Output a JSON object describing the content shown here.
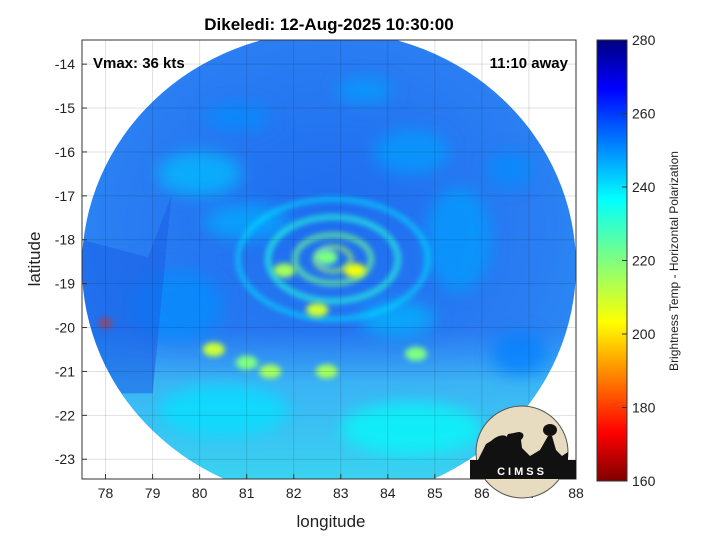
{
  "chart_data": {
    "type": "heatmap",
    "title": "Dikeledi: 12-Aug-2025 10:30:00",
    "xlabel": "longitude",
    "ylabel": "latitude",
    "xlim": [
      77.5,
      88.0
    ],
    "ylim": [
      -23.45,
      -13.45
    ],
    "xticks": [
      78,
      79,
      80,
      81,
      82,
      83,
      84,
      85,
      86,
      87,
      88
    ],
    "yticks": [
      -14,
      -15,
      -16,
      -17,
      -18,
      -19,
      -20,
      -21,
      -22,
      -23
    ],
    "grid": true,
    "annotations": {
      "vmax": "Vmax: 36 kts",
      "time_away": "11:10 away"
    },
    "colorbar": {
      "label": "Brightness Temp - Horizontal Polarization",
      "range": [
        160,
        280
      ],
      "ticks": [
        280,
        260,
        240,
        220,
        200,
        180,
        160
      ],
      "colormap": "jet",
      "placement": "right"
    },
    "swath": {
      "center": [
        82.75,
        -18.6
      ],
      "radius_lon": 5.25,
      "radius_lat": 5.35
    },
    "features": [
      {
        "lon": 82.7,
        "lat": -18.4,
        "tb": 220
      },
      {
        "lon": 83.3,
        "lat": -18.7,
        "tb": 205
      },
      {
        "lon": 81.8,
        "lat": -18.7,
        "tb": 215
      },
      {
        "lon": 82.5,
        "lat": -19.6,
        "tb": 210
      },
      {
        "lon": 78.0,
        "lat": -19.9,
        "tb": 180
      },
      {
        "lon": 80.3,
        "lat": -20.5,
        "tb": 210
      },
      {
        "lon": 81.5,
        "lat": -21.0,
        "tb": 215
      },
      {
        "lon": 82.7,
        "lat": -21.0,
        "tb": 215
      },
      {
        "lon": 84.6,
        "lat": -20.6,
        "tb": 220
      },
      {
        "lon": 81.0,
        "lat": -20.8,
        "tb": 220
      }
    ],
    "background_tb": 256,
    "southern_tb": 236
  },
  "logo": {
    "text": "CIMSS"
  }
}
